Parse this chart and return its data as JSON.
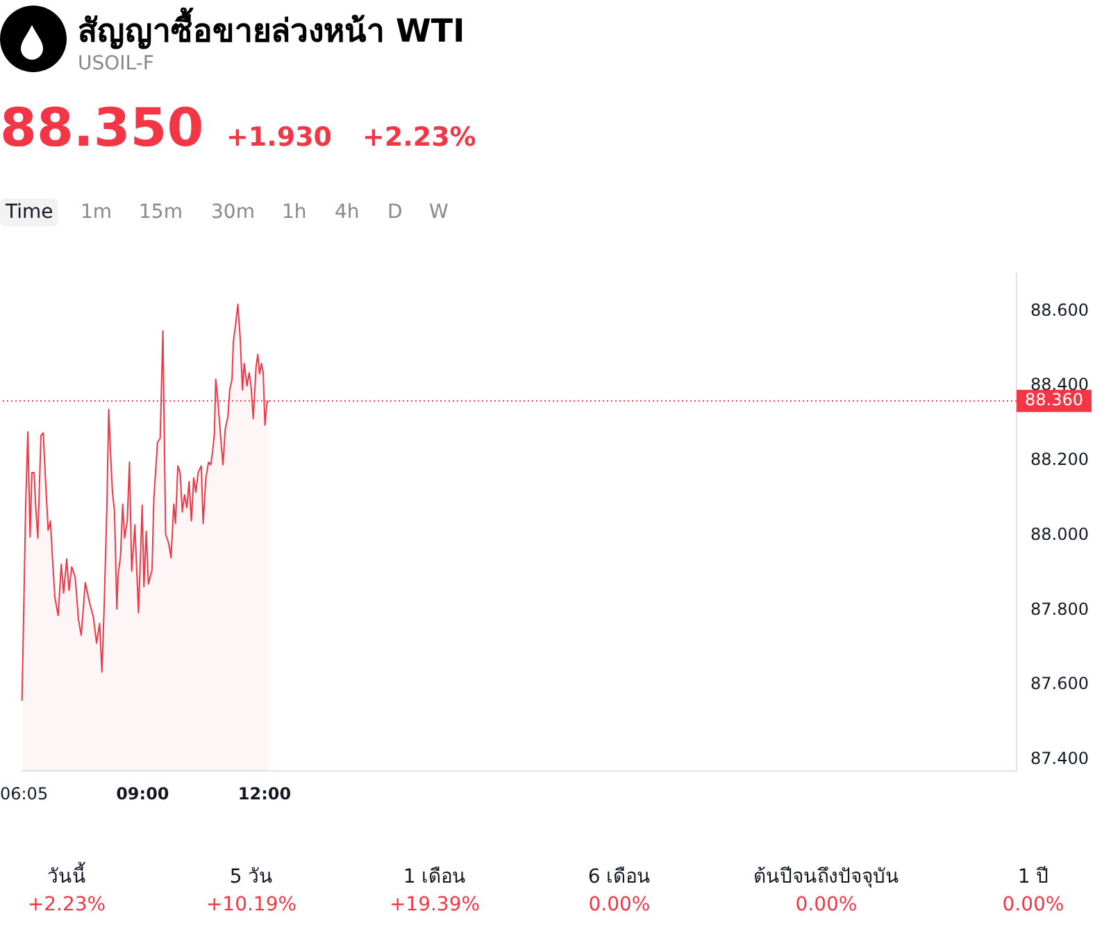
{
  "chart_data": {
    "type": "area",
    "title": "สัญญาซื้อขายล่วงหน้า WTI",
    "subtitle": "USOIL-F",
    "annotations": [
      "88.350",
      "+1.930",
      "+2.23%",
      "Time",
      "1m",
      "15m",
      "30m",
      "1h",
      "4h",
      "D",
      "W",
      "วันนี้",
      "+2.23%",
      "5 วัน",
      "+10.19%",
      "1 เดือน",
      "+19.39%",
      "6 เดือน",
      "0.00%",
      "ต้นปีจนถึงปัจจุบัน",
      "0.00%",
      "1 ปี",
      "0.00%"
    ],
    "series": [
      {
        "color": "#f23645",
        "x": [
          6.033,
          6.067,
          6.123,
          6.177,
          6.233,
          6.277,
          6.333,
          6.367,
          6.423,
          6.5,
          6.557,
          6.61,
          6.677,
          6.733,
          6.777,
          6.843,
          6.923,
          7.0,
          7.057,
          7.133,
          7.19,
          7.257,
          7.343,
          7.423,
          7.49,
          7.59,
          7.7,
          7.79,
          7.867,
          7.943,
          8.0,
          8.057,
          8.123,
          8.167,
          8.21,
          8.257,
          8.31,
          8.367,
          8.4,
          8.457,
          8.51,
          8.557,
          8.623,
          8.677,
          8.733,
          8.81,
          8.9,
          8.99,
          9.033,
          9.09,
          9.143,
          9.233,
          9.277,
          9.367,
          9.433,
          9.5,
          9.567,
          9.643,
          9.7,
          9.767,
          9.81,
          9.867,
          9.923,
          9.977,
          10.033,
          10.09,
          10.143,
          10.2,
          10.257,
          10.31,
          10.367,
          10.443,
          10.49,
          10.557,
          10.623,
          10.677,
          10.723,
          10.767,
          10.8,
          10.857,
          10.923,
          10.977,
          11.033,
          11.1,
          11.143,
          11.2,
          11.233,
          11.29,
          11.343,
          11.4,
          11.457,
          11.5,
          11.567,
          11.623,
          11.667,
          11.723,
          11.79,
          11.833,
          11.877,
          11.923,
          11.967,
          12.01,
          12.057,
          12.1
        ],
        "values": [
          87.558,
          87.747,
          88.074,
          88.277,
          87.996,
          88.168,
          88.168,
          88.084,
          87.993,
          88.267,
          88.274,
          88.154,
          88.014,
          88.039,
          87.951,
          87.835,
          87.786,
          87.923,
          87.846,
          87.937,
          87.853,
          87.916,
          87.888,
          87.775,
          87.733,
          87.874,
          87.818,
          87.782,
          87.712,
          87.765,
          87.635,
          87.818,
          88.084,
          88.337,
          88.225,
          88.119,
          88.063,
          87.803,
          87.898,
          87.944,
          88.084,
          87.993,
          88.039,
          88.196,
          87.905,
          88.028,
          87.793,
          88.081,
          87.863,
          88.011,
          87.87,
          87.909,
          88.098,
          88.249,
          88.26,
          88.547,
          88.004,
          87.979,
          87.94,
          88.084,
          88.032,
          88.186,
          88.168,
          88.063,
          88.109,
          88.074,
          88.144,
          88.039,
          88.154,
          88.116,
          88.168,
          88.186,
          88.032,
          88.154,
          88.196,
          88.189,
          88.225,
          88.274,
          88.418,
          88.354,
          88.26,
          88.189,
          88.284,
          88.319,
          88.389,
          88.418,
          88.519,
          88.565,
          88.618,
          88.53,
          88.389,
          88.46,
          88.4,
          88.435,
          88.4,
          88.312,
          88.449,
          88.484,
          88.432,
          88.46,
          88.435,
          88.295,
          88.354,
          88.361
        ]
      }
    ],
    "xlim": [
      6.033,
      30.5
    ],
    "xticks": [
      {
        "value": 6.0833,
        "label": "06:05"
      },
      {
        "value": 9,
        "label": "09:00"
      },
      {
        "value": 12,
        "label": "12:00"
      }
    ],
    "ylim": [
      87.37,
      88.7
    ],
    "yticks": [
      {
        "value": 87.4,
        "label": "87.400"
      },
      {
        "value": 87.6,
        "label": "87.600"
      },
      {
        "value": 87.8,
        "label": "87.800"
      },
      {
        "value": 88.0,
        "label": "88.000"
      },
      {
        "value": 88.2,
        "label": "88.200"
      },
      {
        "value": 88.4,
        "label": "88.400"
      },
      {
        "value": 88.6,
        "label": "88.600"
      }
    ],
    "ref_lines": [
      {
        "axis": "y",
        "value": 88.36,
        "label": "88.360",
        "color": "#f23645",
        "line_style": "dotted"
      }
    ],
    "grid": false,
    "legend": false,
    "marker": "none",
    "line_style": "solid"
  }
}
